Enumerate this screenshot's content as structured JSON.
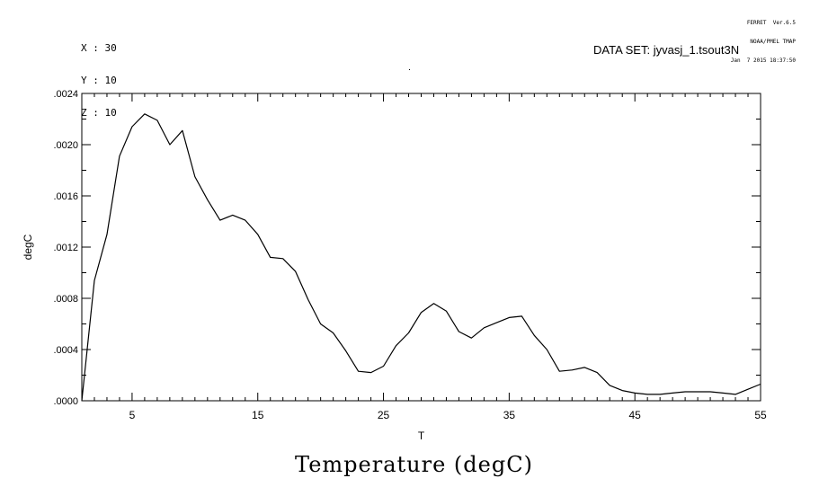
{
  "header": {
    "coords": [
      "X : 30",
      "Y : 10",
      "Z : 10"
    ],
    "ferret": [
      "FERRET  Ver.6.5",
      "NOAA/PMEL TMAP",
      "Jan  7 2015 18:37:50"
    ],
    "dataset": "DATA SET: jyvasj_1.tsout3N"
  },
  "chart_data": {
    "type": "line",
    "title": "Temperature (degC)",
    "xlabel": "T",
    "ylabel": "degC",
    "xlim": [
      1,
      55
    ],
    "ylim": [
      0,
      0.0024
    ],
    "xticks": [
      5,
      15,
      25,
      35,
      45,
      55
    ],
    "xtick_labels": [
      "5",
      "15",
      "25",
      "35",
      "45",
      "55"
    ],
    "yticks": [
      0,
      0.0004,
      0.0008,
      0.0012,
      0.0016,
      0.002,
      0.0024
    ],
    "ytick_labels": [
      ".0000",
      ".0004",
      ".0008",
      ".0012",
      ".0016",
      ".0020",
      ".0024"
    ],
    "grid": false,
    "series": [
      {
        "x": [
          1,
          2,
          3,
          4,
          5,
          6,
          7,
          8,
          9,
          10,
          11,
          12,
          13,
          14,
          15,
          16,
          17,
          18,
          19,
          20,
          21,
          22,
          23,
          24,
          25,
          26,
          27,
          28,
          29,
          30,
          31,
          32,
          33,
          34,
          35,
          36,
          37,
          38,
          39,
          40,
          41,
          42,
          43,
          44,
          45,
          46,
          47,
          48,
          49,
          50,
          51,
          52,
          53,
          54,
          55
        ],
        "values": [
          0.0,
          0.00094,
          0.0013,
          0.00191,
          0.00214,
          0.00224,
          0.00219,
          0.002,
          0.00211,
          0.00175,
          0.00157,
          0.00141,
          0.00145,
          0.00141,
          0.0013,
          0.00112,
          0.00111,
          0.00101,
          0.00079,
          0.0006,
          0.00053,
          0.00039,
          0.00023,
          0.00022,
          0.00027,
          0.00043,
          0.00053,
          0.00069,
          0.00076,
          0.0007,
          0.00054,
          0.00049,
          0.00057,
          0.00061,
          0.00065,
          0.00066,
          0.00051,
          0.0004,
          0.00023,
          0.00024,
          0.00026,
          0.00022,
          0.00012,
          8e-05,
          6e-05,
          5e-05,
          5e-05,
          6e-05,
          7e-05,
          7e-05,
          7e-05,
          6e-05,
          5e-05,
          9e-05,
          0.00013
        ]
      }
    ]
  }
}
